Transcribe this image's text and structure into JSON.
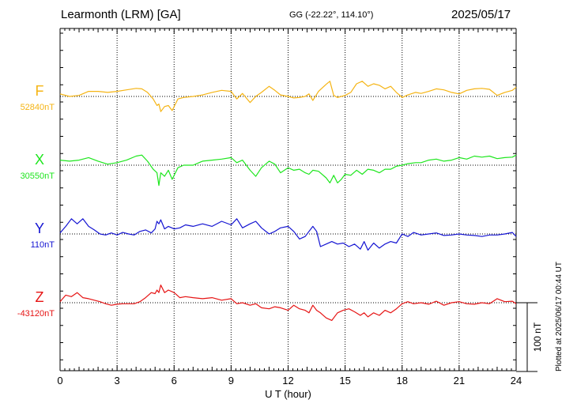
{
  "header": {
    "title": "Learmonth (LRM)  [GA]",
    "coords": "GG (-22.22°, 114.10°)",
    "date": "2025/05/17",
    "plotted": "Plotted at 2025/06/17 00:44 UT"
  },
  "colors": {
    "F": "#f5b414",
    "X": "#1ee61e",
    "Y": "#1414d2",
    "Z": "#e61414",
    "axis": "#000000",
    "grid": "#000000"
  },
  "chart_data": {
    "type": "line",
    "xlabel": "U T (hour)",
    "xlim": [
      0,
      24
    ],
    "xticks": [
      "0",
      "3",
      "6",
      "9",
      "12",
      "15",
      "18",
      "21",
      "24"
    ],
    "scale_label": "100 nT",
    "scale_nT": 100,
    "series": [
      {
        "name": "F",
        "baseline": "52840nT",
        "x": [
          0,
          0.5,
          1,
          1.5,
          2,
          2.5,
          3,
          3.5,
          4,
          4.3,
          4.6,
          4.9,
          5.1,
          5.2,
          5.3,
          5.5,
          5.7,
          5.9,
          6.2,
          6.5,
          7,
          7.5,
          8,
          8.5,
          9,
          9.3,
          9.6,
          10,
          10.3,
          10.6,
          11,
          11.3,
          11.6,
          12,
          12.3,
          12.6,
          12.9,
          13.1,
          13.3,
          13.6,
          14,
          14.2,
          14.4,
          14.6,
          14.8,
          15,
          15.3,
          15.6,
          15.9,
          16.2,
          16.5,
          16.8,
          17.1,
          17.4,
          17.7,
          18,
          18.3,
          18.7,
          19,
          19.4,
          19.8,
          20.2,
          20.6,
          21,
          21.4,
          21.8,
          22.2,
          22.6,
          23,
          23.4,
          23.8,
          24
        ],
        "y": [
          5,
          0,
          2,
          10,
          10,
          8,
          10,
          13,
          16,
          15,
          8,
          -5,
          -18,
          -15,
          -30,
          -20,
          -18,
          -28,
          -5,
          -2,
          0,
          3,
          8,
          12,
          10,
          -5,
          6,
          -12,
          0,
          8,
          20,
          12,
          3,
          0,
          -3,
          -2,
          0,
          5,
          -8,
          10,
          24,
          30,
          2,
          -2,
          0,
          2,
          8,
          25,
          30,
          20,
          25,
          22,
          15,
          20,
          8,
          -2,
          3,
          8,
          6,
          10,
          15,
          13,
          8,
          5,
          12,
          15,
          16,
          14,
          2,
          8,
          12,
          18
        ]
      },
      {
        "name": "X",
        "baseline": "30550nT",
        "x": [
          0,
          0.5,
          1,
          1.5,
          2,
          2.5,
          3,
          3.5,
          4,
          4.3,
          4.6,
          4.9,
          5.1,
          5.2,
          5.3,
          5.5,
          5.7,
          5.9,
          6.2,
          6.5,
          7,
          7.5,
          8,
          8.5,
          9,
          9.3,
          9.6,
          10,
          10.3,
          10.6,
          11,
          11.3,
          11.6,
          12,
          12.3,
          12.6,
          12.9,
          13.1,
          13.3,
          13.6,
          14,
          14.2,
          14.4,
          14.6,
          14.8,
          15,
          15.3,
          15.6,
          15.9,
          16.2,
          16.5,
          16.8,
          17.1,
          17.4,
          17.7,
          18,
          18.3,
          18.7,
          19,
          19.4,
          19.8,
          20.2,
          20.6,
          21,
          21.4,
          21.8,
          22.2,
          22.6,
          23,
          23.4,
          23.8,
          24
        ],
        "y": [
          10,
          8,
          10,
          15,
          8,
          2,
          5,
          10,
          18,
          20,
          8,
          -8,
          -15,
          -40,
          -15,
          -22,
          -10,
          -28,
          -5,
          0,
          0,
          8,
          10,
          12,
          15,
          5,
          10,
          -10,
          -22,
          -5,
          8,
          2,
          -15,
          -5,
          -10,
          -8,
          -15,
          -18,
          -10,
          -12,
          -25,
          -35,
          -20,
          -35,
          -28,
          -18,
          -20,
          -10,
          -18,
          -8,
          -10,
          -15,
          -8,
          -8,
          -2,
          0,
          3,
          5,
          5,
          10,
          12,
          8,
          10,
          15,
          12,
          18,
          16,
          18,
          13,
          15,
          16,
          20
        ]
      },
      {
        "name": "Y",
        "baseline": "110nT",
        "x": [
          0,
          0.3,
          0.6,
          0.9,
          1.2,
          1.5,
          1.8,
          2.1,
          2.4,
          2.7,
          3,
          3.3,
          3.6,
          3.9,
          4.2,
          4.5,
          4.8,
          5,
          5.1,
          5.2,
          5.3,
          5.5,
          5.7,
          6,
          6.3,
          6.6,
          7,
          7.5,
          8,
          8.5,
          9,
          9.3,
          9.6,
          10,
          10.3,
          10.6,
          11,
          11.3,
          11.6,
          12,
          12.3,
          12.6,
          12.9,
          13.1,
          13.3,
          13.5,
          13.7,
          14,
          14.3,
          14.6,
          14.9,
          15.2,
          15.5,
          15.8,
          16,
          16.2,
          16.5,
          16.8,
          17.1,
          17.4,
          17.7,
          18,
          18.3,
          18.6,
          19,
          19.4,
          19.8,
          20.2,
          20.6,
          21,
          21.4,
          21.8,
          22.2,
          22.6,
          23,
          23.4,
          23.8,
          24
        ],
        "y": [
          2,
          15,
          30,
          20,
          30,
          15,
          8,
          0,
          -2,
          2,
          -2,
          3,
          0,
          -2,
          5,
          8,
          2,
          10,
          25,
          20,
          28,
          10,
          15,
          10,
          12,
          18,
          15,
          20,
          15,
          25,
          18,
          30,
          12,
          20,
          25,
          12,
          0,
          5,
          12,
          15,
          5,
          -10,
          -5,
          5,
          15,
          5,
          -25,
          -20,
          -15,
          -20,
          -18,
          -25,
          -20,
          -30,
          -15,
          -32,
          -18,
          -28,
          -20,
          -15,
          -18,
          0,
          -5,
          3,
          -2,
          0,
          2,
          -3,
          -2,
          0,
          -2,
          -3,
          -5,
          -2,
          -2,
          0,
          3,
          -5
        ]
      },
      {
        "name": "Z",
        "baseline": "-43120nT",
        "x": [
          0,
          0.3,
          0.6,
          0.9,
          1.2,
          1.5,
          1.8,
          2.1,
          2.4,
          2.7,
          3,
          3.3,
          3.6,
          3.9,
          4.2,
          4.5,
          4.8,
          5,
          5.1,
          5.2,
          5.3,
          5.5,
          5.7,
          6,
          6.3,
          6.6,
          7,
          7.5,
          8,
          8.5,
          9,
          9.3,
          9.6,
          10,
          10.3,
          10.6,
          11,
          11.3,
          11.6,
          12,
          12.3,
          12.6,
          12.9,
          13.1,
          13.3,
          13.5,
          13.7,
          14,
          14.3,
          14.6,
          14.9,
          15.2,
          15.5,
          15.8,
          16,
          16.2,
          16.5,
          16.8,
          17.1,
          17.4,
          17.7,
          18,
          18.3,
          18.6,
          19,
          19.4,
          19.8,
          20.2,
          20.6,
          21,
          21.4,
          21.8,
          22.2,
          22.6,
          23,
          23.4,
          23.8,
          24
        ],
        "y": [
          2,
          15,
          12,
          20,
          10,
          8,
          5,
          2,
          -2,
          -5,
          -3,
          -2,
          -2,
          -2,
          2,
          10,
          20,
          18,
          25,
          20,
          35,
          20,
          25,
          20,
          10,
          12,
          10,
          8,
          10,
          5,
          8,
          -2,
          0,
          -5,
          -2,
          -10,
          -12,
          -8,
          -10,
          -15,
          -5,
          -12,
          -15,
          -20,
          -5,
          -15,
          -20,
          -30,
          -35,
          -20,
          -15,
          -12,
          -18,
          -25,
          -20,
          -28,
          -20,
          -25,
          -15,
          -20,
          -12,
          -2,
          2,
          -2,
          0,
          -3,
          3,
          -5,
          0,
          2,
          -2,
          -3,
          0,
          -2,
          8,
          2,
          3,
          -2
        ]
      }
    ]
  }
}
